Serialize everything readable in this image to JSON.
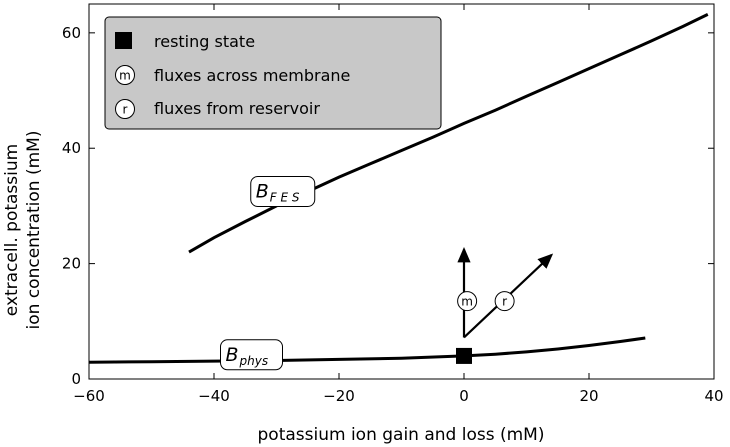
{
  "chart_data": {
    "type": "line",
    "title": "",
    "xlabel": "potassium ion gain and loss (mM)",
    "ylabel_lines": [
      "extracell. potassium",
      "ion concentration (mM)"
    ],
    "xlim": [
      -60,
      40
    ],
    "ylim": [
      0,
      65
    ],
    "xticks": [
      -60,
      -40,
      -20,
      0,
      20,
      40
    ],
    "yticks": [
      0,
      20,
      40,
      60
    ],
    "xtick_labels": [
      "−60",
      "−40",
      "−20",
      "0",
      "20",
      "40"
    ],
    "ytick_labels": [
      "0",
      "20",
      "40",
      "60"
    ],
    "grid": false,
    "legend": {
      "placement": "top-left",
      "background": "#c8c8c8",
      "entries": [
        {
          "marker": "square",
          "label": "resting state"
        },
        {
          "marker": "circle",
          "symbol": "m",
          "label": "fluxes across membrane"
        },
        {
          "marker": "circle",
          "symbol": "r",
          "label": "fluxes from reservoir"
        }
      ]
    },
    "series": [
      {
        "curve": "FES",
        "x": [
          -44,
          -40,
          -35,
          -30,
          -25,
          -20,
          -15,
          -10,
          -5,
          0,
          5,
          10,
          15,
          20,
          25,
          30,
          35,
          39
        ],
        "y": [
          22.0,
          24.5,
          27.3,
          30.0,
          32.5,
          35.0,
          37.3,
          39.6,
          41.9,
          44.3,
          46.6,
          49.0,
          51.4,
          53.8,
          56.2,
          58.6,
          61.1,
          63.2
        ]
      },
      {
        "curve": "phys",
        "x": [
          -60,
          -50,
          -40,
          -30,
          -20,
          -10,
          0,
          5,
          10,
          15,
          20,
          25,
          29
        ],
        "y": [
          2.9,
          3.0,
          3.1,
          3.2,
          3.4,
          3.6,
          4.0,
          4.3,
          4.7,
          5.2,
          5.8,
          6.5,
          7.1
        ]
      }
    ],
    "curve_labels": [
      {
        "main": "B",
        "sub": "F E S",
        "x": -29,
        "y": 32.5
      },
      {
        "main": "B",
        "sub": "phys",
        "x": -34,
        "y": 4.2
      }
    ],
    "resting_state": {
      "x": 0,
      "y": 4.0
    },
    "flux_arrows": [
      {
        "symbol": "m",
        "from": [
          0,
          7.2
        ],
        "to": [
          0,
          22.5
        ],
        "label_at": [
          0.5,
          13.5
        ]
      },
      {
        "symbol": "r",
        "from": [
          0,
          7.2
        ],
        "to": [
          14,
          21.5
        ],
        "label_at": [
          6.5,
          13.5
        ]
      }
    ]
  }
}
